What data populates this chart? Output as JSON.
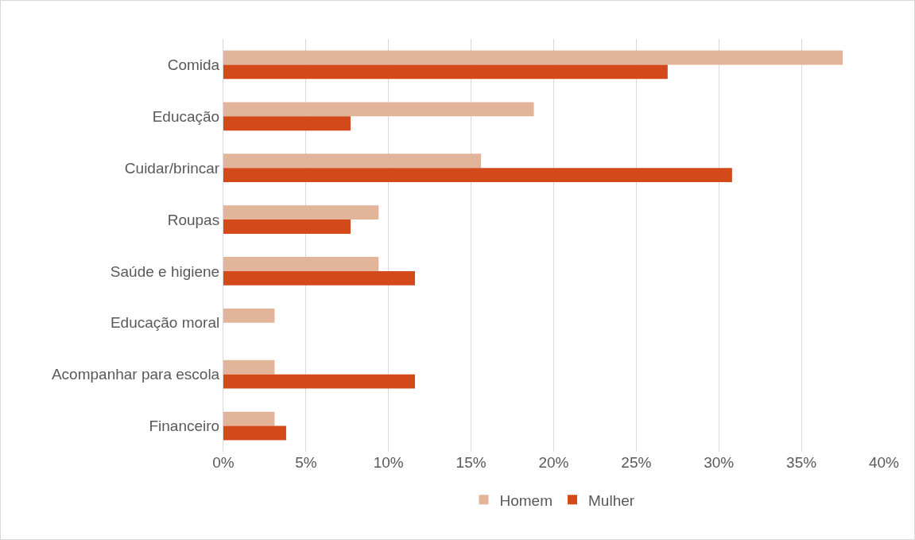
{
  "chart_data": {
    "type": "bar",
    "orientation": "horizontal",
    "categories": [
      "Comida",
      "Educação",
      "Cuidar/brincar",
      "Roupas",
      "Saúde e higiene",
      "Educação moral",
      "Acompanhar para escola",
      "Financeiro"
    ],
    "series": [
      {
        "name": "Homem",
        "color": "#e2b49a",
        "values": [
          37.5,
          18.8,
          15.6,
          9.4,
          9.4,
          3.1,
          3.1,
          3.1
        ]
      },
      {
        "name": "Mulher",
        "color": "#d4491a",
        "values": [
          26.9,
          7.7,
          30.8,
          7.7,
          11.6,
          0,
          11.6,
          3.8
        ]
      }
    ],
    "xlim": [
      0,
      40
    ],
    "xticks": [
      {
        "value": 0,
        "label": "0%"
      },
      {
        "value": 5,
        "label": "5%"
      },
      {
        "value": 10,
        "label": "10%"
      },
      {
        "value": 15,
        "label": "15%"
      },
      {
        "value": 20,
        "label": "20%"
      },
      {
        "value": 25,
        "label": "25%"
      },
      {
        "value": 30,
        "label": "30%"
      },
      {
        "value": 35,
        "label": "35%"
      },
      {
        "value": 40,
        "label": "40%"
      }
    ],
    "grid": "x",
    "legend": "bottom"
  }
}
